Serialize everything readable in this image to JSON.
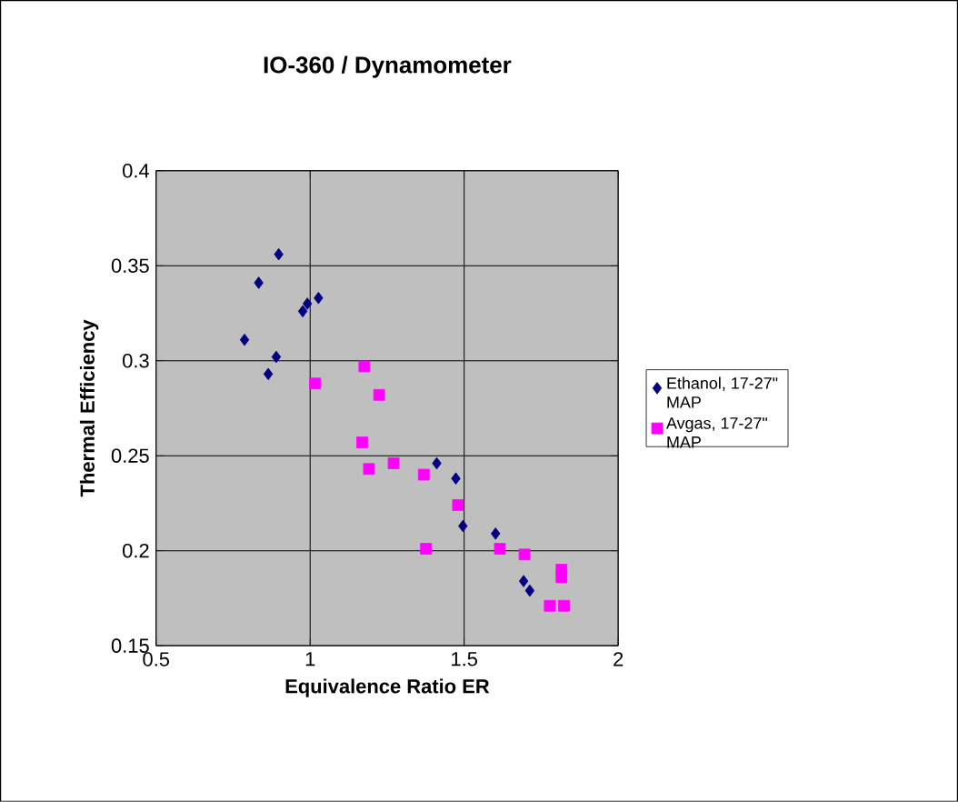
{
  "chart_data": {
    "type": "scatter",
    "title": "IO-360 / Dynamometer",
    "xlabel": "Equivalence Ratio ER",
    "ylabel": "Thermal Efficiency",
    "xlim": [
      0.5,
      2
    ],
    "xticks": [
      0.5,
      1,
      1.5,
      2
    ],
    "ylim": [
      0.15,
      0.4
    ],
    "yticks": [
      0.15,
      0.2,
      0.25,
      0.3,
      0.35,
      0.4
    ],
    "grid": true,
    "legend": "right",
    "series": [
      {
        "name": "Ethanol, 17-27\" MAP",
        "color": "#000080",
        "marker": "diamond",
        "x": [
          0.898,
          0.833,
          0.787,
          0.864,
          0.89,
          0.976,
          0.991,
          1.027,
          1.411,
          1.473,
          1.496,
          1.602,
          1.693,
          1.713
        ],
        "values": [
          0.356,
          0.341,
          0.311,
          0.293,
          0.302,
          0.326,
          0.33,
          0.333,
          0.246,
          0.238,
          0.213,
          0.209,
          0.184,
          0.179
        ]
      },
      {
        "name": "Avgas, 17-27\" MAP",
        "color": "#ff00ff",
        "marker": "square",
        "x": [
          1.176,
          1.016,
          1.224,
          1.169,
          1.191,
          1.271,
          1.369,
          1.48,
          1.376,
          1.616,
          1.696,
          1.816,
          1.816,
          1.778,
          1.824
        ],
        "values": [
          0.297,
          0.288,
          0.282,
          0.257,
          0.243,
          0.246,
          0.24,
          0.224,
          0.201,
          0.201,
          0.198,
          0.19,
          0.186,
          0.171,
          0.171
        ]
      }
    ]
  }
}
